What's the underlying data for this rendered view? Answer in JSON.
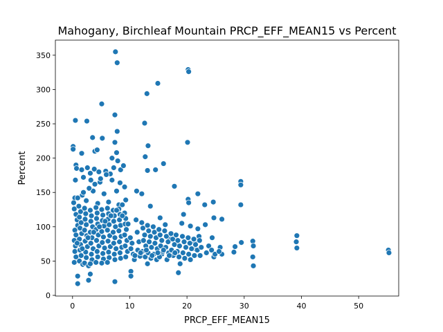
{
  "chart_data": {
    "type": "scatter",
    "title": "Mahogany, Birchleaf Mountain PRCP_EFF_MEAN15 vs Percent",
    "xlabel": "PRCP_EFF_MEAN15",
    "ylabel": "Percent",
    "xlim": [
      -3,
      57
    ],
    "ylim": [
      -1,
      372
    ],
    "xticks": [
      0,
      10,
      20,
      30,
      40,
      50
    ],
    "yticks": [
      0,
      50,
      100,
      150,
      200,
      250,
      300,
      350
    ],
    "grid": false,
    "marker_color": "#1f77b4",
    "points": [
      [
        7.5,
        355
      ],
      [
        7.8,
        339
      ],
      [
        20.2,
        329
      ],
      [
        20.3,
        326
      ],
      [
        14.9,
        309
      ],
      [
        13,
        294
      ],
      [
        5.1,
        279
      ],
      [
        7.4,
        263
      ],
      [
        0.5,
        255
      ],
      [
        2.5,
        254
      ],
      [
        12.6,
        251
      ],
      [
        3.5,
        230
      ],
      [
        5.2,
        229
      ],
      [
        7.8,
        239
      ],
      [
        7.4,
        223
      ],
      [
        13.2,
        218
      ],
      [
        20.1,
        223
      ],
      [
        0.1,
        217
      ],
      [
        0.1,
        213
      ],
      [
        1.6,
        207
      ],
      [
        3.9,
        210
      ],
      [
        4.3,
        212
      ],
      [
        7.7,
        208
      ],
      [
        12.7,
        202
      ],
      [
        15.9,
        192
      ],
      [
        13.1,
        182
      ],
      [
        14.5,
        183
      ],
      [
        17.8,
        159
      ],
      [
        29.4,
        166
      ],
      [
        29.4,
        161
      ],
      [
        20.2,
        140
      ],
      [
        20.3,
        135
      ],
      [
        21.9,
        148
      ],
      [
        24.6,
        136
      ],
      [
        23.1,
        132
      ],
      [
        29.4,
        132
      ],
      [
        39.2,
        87
      ],
      [
        39.1,
        78
      ],
      [
        39.2,
        69
      ],
      [
        31.5,
        79
      ],
      [
        31.6,
        72
      ],
      [
        31.5,
        56
      ],
      [
        31.6,
        43
      ],
      [
        55.2,
        66
      ],
      [
        55.3,
        62
      ],
      [
        28.4,
        71
      ],
      [
        28.2,
        63
      ],
      [
        29.5,
        77
      ],
      [
        26.1,
        111
      ],
      [
        24.7,
        113
      ],
      [
        23.2,
        103
      ],
      [
        21.9,
        97
      ],
      [
        22.1,
        86
      ],
      [
        24.4,
        84
      ],
      [
        25.8,
        70
      ],
      [
        26.1,
        60
      ],
      [
        0.9,
        28
      ],
      [
        0.9,
        17
      ],
      [
        2.8,
        22
      ],
      [
        3.1,
        31
      ],
      [
        7.4,
        20
      ],
      [
        10.2,
        35
      ],
      [
        10.2,
        28
      ],
      [
        18.5,
        33
      ],
      [
        15.6,
        60
      ],
      [
        16.5,
        52
      ],
      [
        18.8,
        46
      ],
      [
        21.4,
        68
      ],
      [
        23.4,
        62
      ],
      [
        24.7,
        56
      ],
      [
        18.2,
        75
      ],
      [
        17.1,
        82
      ],
      [
        0.6,
        190
      ],
      [
        0.7,
        185
      ],
      [
        1.6,
        183
      ],
      [
        2.6,
        186
      ],
      [
        3.1,
        178
      ],
      [
        3.8,
        184
      ],
      [
        4.6,
        180
      ],
      [
        5.8,
        181
      ],
      [
        6.6,
        177
      ],
      [
        7.2,
        186
      ],
      [
        8.4,
        183
      ],
      [
        8.9,
        189
      ],
      [
        0.5,
        168
      ],
      [
        1.9,
        172
      ],
      [
        3.2,
        168
      ],
      [
        4.8,
        165
      ],
      [
        6.9,
        168
      ],
      [
        8.3,
        164
      ],
      [
        9.1,
        158
      ],
      [
        7.7,
        152
      ],
      [
        5.5,
        148
      ],
      [
        3.6,
        152
      ],
      [
        1.7,
        146
      ],
      [
        0.4,
        142
      ],
      [
        2.4,
        138
      ],
      [
        4.4,
        134
      ],
      [
        6.3,
        136
      ],
      [
        8.1,
        132
      ],
      [
        9.3,
        139
      ],
      [
        11.2,
        152
      ],
      [
        12.1,
        148
      ],
      [
        13.6,
        130
      ],
      [
        15.3,
        113
      ],
      [
        16.2,
        103
      ],
      [
        19.4,
        118
      ],
      [
        19.1,
        105
      ],
      [
        20.6,
        101
      ],
      [
        21.4,
        76
      ],
      [
        22.3,
        58
      ],
      [
        0.2,
        135
      ],
      [
        0.3,
        126
      ],
      [
        0.6,
        118
      ],
      [
        0.8,
        110
      ],
      [
        0.9,
        102
      ],
      [
        0.4,
        95
      ],
      [
        0.6,
        88
      ],
      [
        0.3,
        80
      ],
      [
        0.5,
        72
      ],
      [
        0.4,
        64
      ],
      [
        0.6,
        56
      ],
      [
        0.3,
        48
      ],
      [
        1.1,
        130
      ],
      [
        1.4,
        122
      ],
      [
        1.2,
        114
      ],
      [
        1.5,
        106
      ],
      [
        1.3,
        98
      ],
      [
        1.6,
        90
      ],
      [
        1.2,
        82
      ],
      [
        1.4,
        74
      ],
      [
        1.3,
        66
      ],
      [
        1.5,
        58
      ],
      [
        1.2,
        50
      ],
      [
        1.8,
        45
      ],
      [
        2.1,
        127
      ],
      [
        2.3,
        119
      ],
      [
        2.2,
        111
      ],
      [
        2.4,
        103
      ],
      [
        2.1,
        95
      ],
      [
        2.5,
        87
      ],
      [
        2.2,
        79
      ],
      [
        2.6,
        71
      ],
      [
        2.3,
        63
      ],
      [
        2.4,
        55
      ],
      [
        2.1,
        47
      ],
      [
        2.8,
        43
      ],
      [
        3.1,
        124
      ],
      [
        3.3,
        116
      ],
      [
        3.2,
        108
      ],
      [
        3.5,
        100
      ],
      [
        3.1,
        92
      ],
      [
        3.4,
        84
      ],
      [
        3.2,
        76
      ],
      [
        3.6,
        68
      ],
      [
        3.3,
        60
      ],
      [
        3.4,
        52
      ],
      [
        3.1,
        46
      ],
      [
        4.1,
        128
      ],
      [
        4.3,
        120
      ],
      [
        4.2,
        112
      ],
      [
        4.4,
        104
      ],
      [
        4.1,
        96
      ],
      [
        4.5,
        88
      ],
      [
        4.2,
        80
      ],
      [
        4.6,
        72
      ],
      [
        4.3,
        64
      ],
      [
        4.4,
        56
      ],
      [
        4.1,
        48
      ],
      [
        5.1,
        125
      ],
      [
        5.3,
        117
      ],
      [
        5.2,
        109
      ],
      [
        5.5,
        101
      ],
      [
        5.1,
        93
      ],
      [
        5.4,
        85
      ],
      [
        5.2,
        77
      ],
      [
        5.6,
        69
      ],
      [
        5.3,
        61
      ],
      [
        5.4,
        53
      ],
      [
        5.1,
        47
      ],
      [
        6.1,
        127
      ],
      [
        6.3,
        119
      ],
      [
        6.2,
        111
      ],
      [
        6.4,
        103
      ],
      [
        6.1,
        95
      ],
      [
        6.5,
        87
      ],
      [
        6.2,
        79
      ],
      [
        6.6,
        71
      ],
      [
        6.3,
        63
      ],
      [
        6.4,
        55
      ],
      [
        6.1,
        48
      ],
      [
        7.1,
        124
      ],
      [
        7.3,
        116
      ],
      [
        7.2,
        108
      ],
      [
        7.5,
        100
      ],
      [
        7.1,
        92
      ],
      [
        7.4,
        84
      ],
      [
        7.2,
        76
      ],
      [
        7.6,
        68
      ],
      [
        7.3,
        60
      ],
      [
        7.4,
        52
      ],
      [
        8.1,
        126
      ],
      [
        8.3,
        118
      ],
      [
        8.2,
        110
      ],
      [
        8.4,
        102
      ],
      [
        8.1,
        94
      ],
      [
        8.5,
        86
      ],
      [
        8.2,
        78
      ],
      [
        8.6,
        70
      ],
      [
        8.3,
        62
      ],
      [
        8.4,
        54
      ],
      [
        9.1,
        120
      ],
      [
        9.3,
        112
      ],
      [
        9.2,
        104
      ],
      [
        9.4,
        96
      ],
      [
        9.1,
        88
      ],
      [
        9.5,
        80
      ],
      [
        9.2,
        72
      ],
      [
        9.6,
        64
      ],
      [
        9.3,
        56
      ],
      [
        10.1,
        84
      ],
      [
        10.4,
        76
      ],
      [
        10.2,
        68
      ],
      [
        10.6,
        60
      ],
      [
        10.8,
        52
      ],
      [
        11.1,
        110
      ],
      [
        11.3,
        92
      ],
      [
        11.6,
        78
      ],
      [
        11.4,
        66
      ],
      [
        11.8,
        57
      ],
      [
        12.1,
        106
      ],
      [
        12.3,
        98
      ],
      [
        12.6,
        88
      ],
      [
        12.4,
        80
      ],
      [
        12.8,
        72
      ],
      [
        12.2,
        64
      ],
      [
        12.7,
        56
      ],
      [
        13.1,
        102
      ],
      [
        13.3,
        94
      ],
      [
        13.6,
        86
      ],
      [
        13.4,
        78
      ],
      [
        13.8,
        70
      ],
      [
        13.2,
        62
      ],
      [
        13.7,
        54
      ],
      [
        13.1,
        46
      ],
      [
        14.1,
        100
      ],
      [
        14.3,
        92
      ],
      [
        14.6,
        84
      ],
      [
        14.4,
        76
      ],
      [
        14.8,
        68
      ],
      [
        14.2,
        60
      ],
      [
        14.7,
        52
      ],
      [
        15.1,
        96
      ],
      [
        15.3,
        88
      ],
      [
        15.6,
        80
      ],
      [
        15.4,
        72
      ],
      [
        15.8,
        64
      ],
      [
        15.2,
        56
      ],
      [
        16.1,
        94
      ],
      [
        16.4,
        86
      ],
      [
        16.7,
        78
      ],
      [
        16.3,
        70
      ],
      [
        16.8,
        62
      ],
      [
        17.2,
        90
      ],
      [
        17.5,
        82
      ],
      [
        17.8,
        74
      ],
      [
        17.3,
        66
      ],
      [
        17.6,
        58
      ],
      [
        18.1,
        88
      ],
      [
        18.4,
        80
      ],
      [
        18.7,
        72
      ],
      [
        18.3,
        64
      ],
      [
        18.6,
        56
      ],
      [
        19.2,
        86
      ],
      [
        19.5,
        78
      ],
      [
        19.8,
        70
      ],
      [
        19.3,
        62
      ],
      [
        19.6,
        54
      ],
      [
        20.2,
        84
      ],
      [
        20.5,
        76
      ],
      [
        20.8,
        68
      ],
      [
        20.3,
        60
      ],
      [
        20.6,
        52
      ],
      [
        21.2,
        82
      ],
      [
        21.5,
        74
      ],
      [
        21.8,
        66
      ],
      [
        21.3,
        58
      ],
      [
        22.2,
        80
      ],
      [
        22.5,
        70
      ],
      [
        23.8,
        72
      ],
      [
        24.3,
        66
      ],
      [
        24.9,
        60
      ],
      [
        25.6,
        64
      ],
      [
        0.8,
        76
      ],
      [
        1.7,
        68
      ],
      [
        2.7,
        84
      ],
      [
        3.7,
        92
      ],
      [
        4.7,
        100
      ],
      [
        5.7,
        108
      ],
      [
        6.7,
        116
      ],
      [
        7.7,
        124
      ],
      [
        8.7,
        132
      ],
      [
        0.9,
        142
      ],
      [
        1.9,
        150
      ],
      [
        2.9,
        156
      ],
      [
        3.9,
        162
      ],
      [
        4.9,
        170
      ],
      [
        5.9,
        176
      ],
      [
        6.9,
        200
      ],
      [
        7.9,
        196
      ],
      [
        8.7,
        116
      ],
      [
        9.7,
        104
      ],
      [
        10.9,
        58
      ],
      [
        11.9,
        62
      ],
      [
        12.9,
        66
      ],
      [
        13.9,
        58
      ],
      [
        14.9,
        62
      ],
      [
        15.9,
        66
      ],
      [
        16.9,
        58
      ],
      [
        17.9,
        62
      ]
    ]
  }
}
